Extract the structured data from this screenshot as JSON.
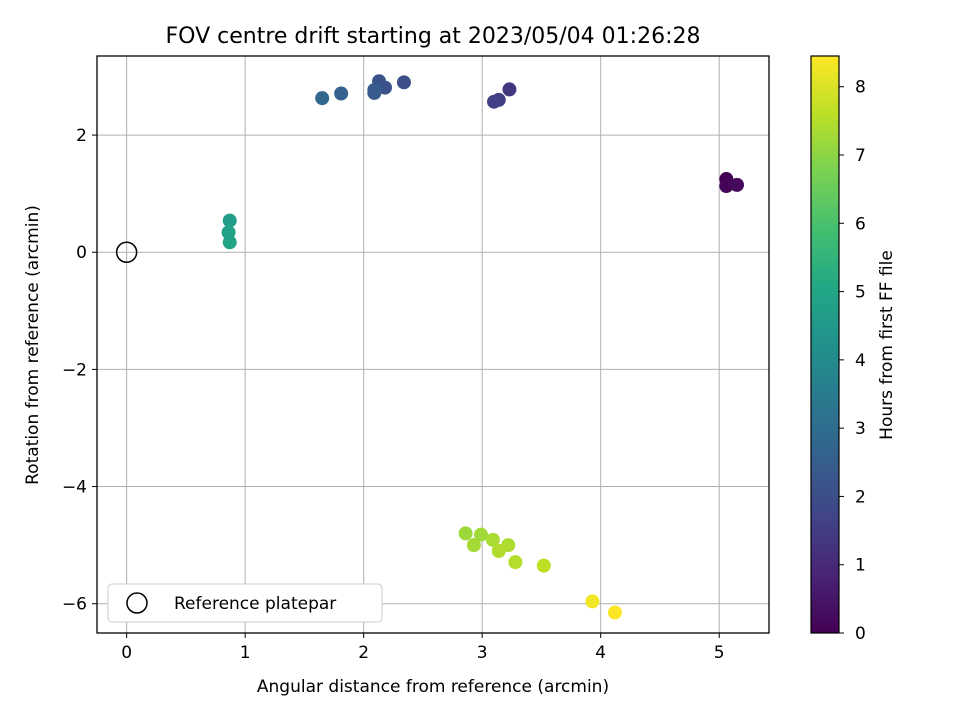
{
  "chart_data": {
    "type": "scatter",
    "title": "FOV centre drift starting at 2023/05/04 01:26:28",
    "xlabel": "Angular distance from reference (arcmin)",
    "ylabel": "Rotation from reference (arcmin)",
    "xlim": [
      -0.25,
      5.42
    ],
    "ylim": [
      -6.5,
      3.35
    ],
    "xticks": [
      0,
      1,
      2,
      3,
      4,
      5
    ],
    "yticks": [
      -6,
      -4,
      -2,
      0,
      2
    ],
    "grid": true,
    "legend": {
      "placement": "lower-left",
      "entries": [
        "Reference platepar"
      ]
    },
    "reference_point": {
      "x": 0,
      "y": 0,
      "label": "Reference platepar"
    },
    "colorbar": {
      "label": "Hours from first FF file",
      "colormap": "viridis",
      "range": [
        0,
        8.45
      ],
      "ticks": [
        0,
        1,
        2,
        3,
        4,
        5,
        6,
        7,
        8
      ]
    },
    "points": [
      {
        "x": 5.06,
        "y": 1.25,
        "c": 0.0
      },
      {
        "x": 5.06,
        "y": 1.13,
        "c": 0.1
      },
      {
        "x": 5.15,
        "y": 1.15,
        "c": 0.2
      },
      {
        "x": 3.23,
        "y": 2.78,
        "c": 1.3
      },
      {
        "x": 3.14,
        "y": 2.6,
        "c": 1.5
      },
      {
        "x": 3.1,
        "y": 2.57,
        "c": 1.6
      },
      {
        "x": 2.34,
        "y": 2.9,
        "c": 2.0
      },
      {
        "x": 2.18,
        "y": 2.81,
        "c": 2.1
      },
      {
        "x": 2.13,
        "y": 2.92,
        "c": 2.2
      },
      {
        "x": 2.09,
        "y": 2.72,
        "c": 2.3
      },
      {
        "x": 2.09,
        "y": 2.77,
        "c": 2.4
      },
      {
        "x": 1.81,
        "y": 2.71,
        "c": 2.6
      },
      {
        "x": 1.65,
        "y": 2.63,
        "c": 2.8
      },
      {
        "x": 0.87,
        "y": 0.54,
        "c": 4.7
      },
      {
        "x": 0.86,
        "y": 0.34,
        "c": 4.8
      },
      {
        "x": 0.87,
        "y": 0.17,
        "c": 4.9
      },
      {
        "x": 2.86,
        "y": -4.8,
        "c": 7.2
      },
      {
        "x": 2.99,
        "y": -4.82,
        "c": 7.25
      },
      {
        "x": 2.93,
        "y": -5.0,
        "c": 7.3
      },
      {
        "x": 3.09,
        "y": -4.91,
        "c": 7.35
      },
      {
        "x": 3.22,
        "y": -5.0,
        "c": 7.4
      },
      {
        "x": 3.14,
        "y": -5.1,
        "c": 7.45
      },
      {
        "x": 3.28,
        "y": -5.29,
        "c": 7.5
      },
      {
        "x": 3.52,
        "y": -5.35,
        "c": 7.6
      },
      {
        "x": 3.93,
        "y": -5.96,
        "c": 8.3
      },
      {
        "x": 4.12,
        "y": -6.15,
        "c": 8.45
      }
    ]
  }
}
